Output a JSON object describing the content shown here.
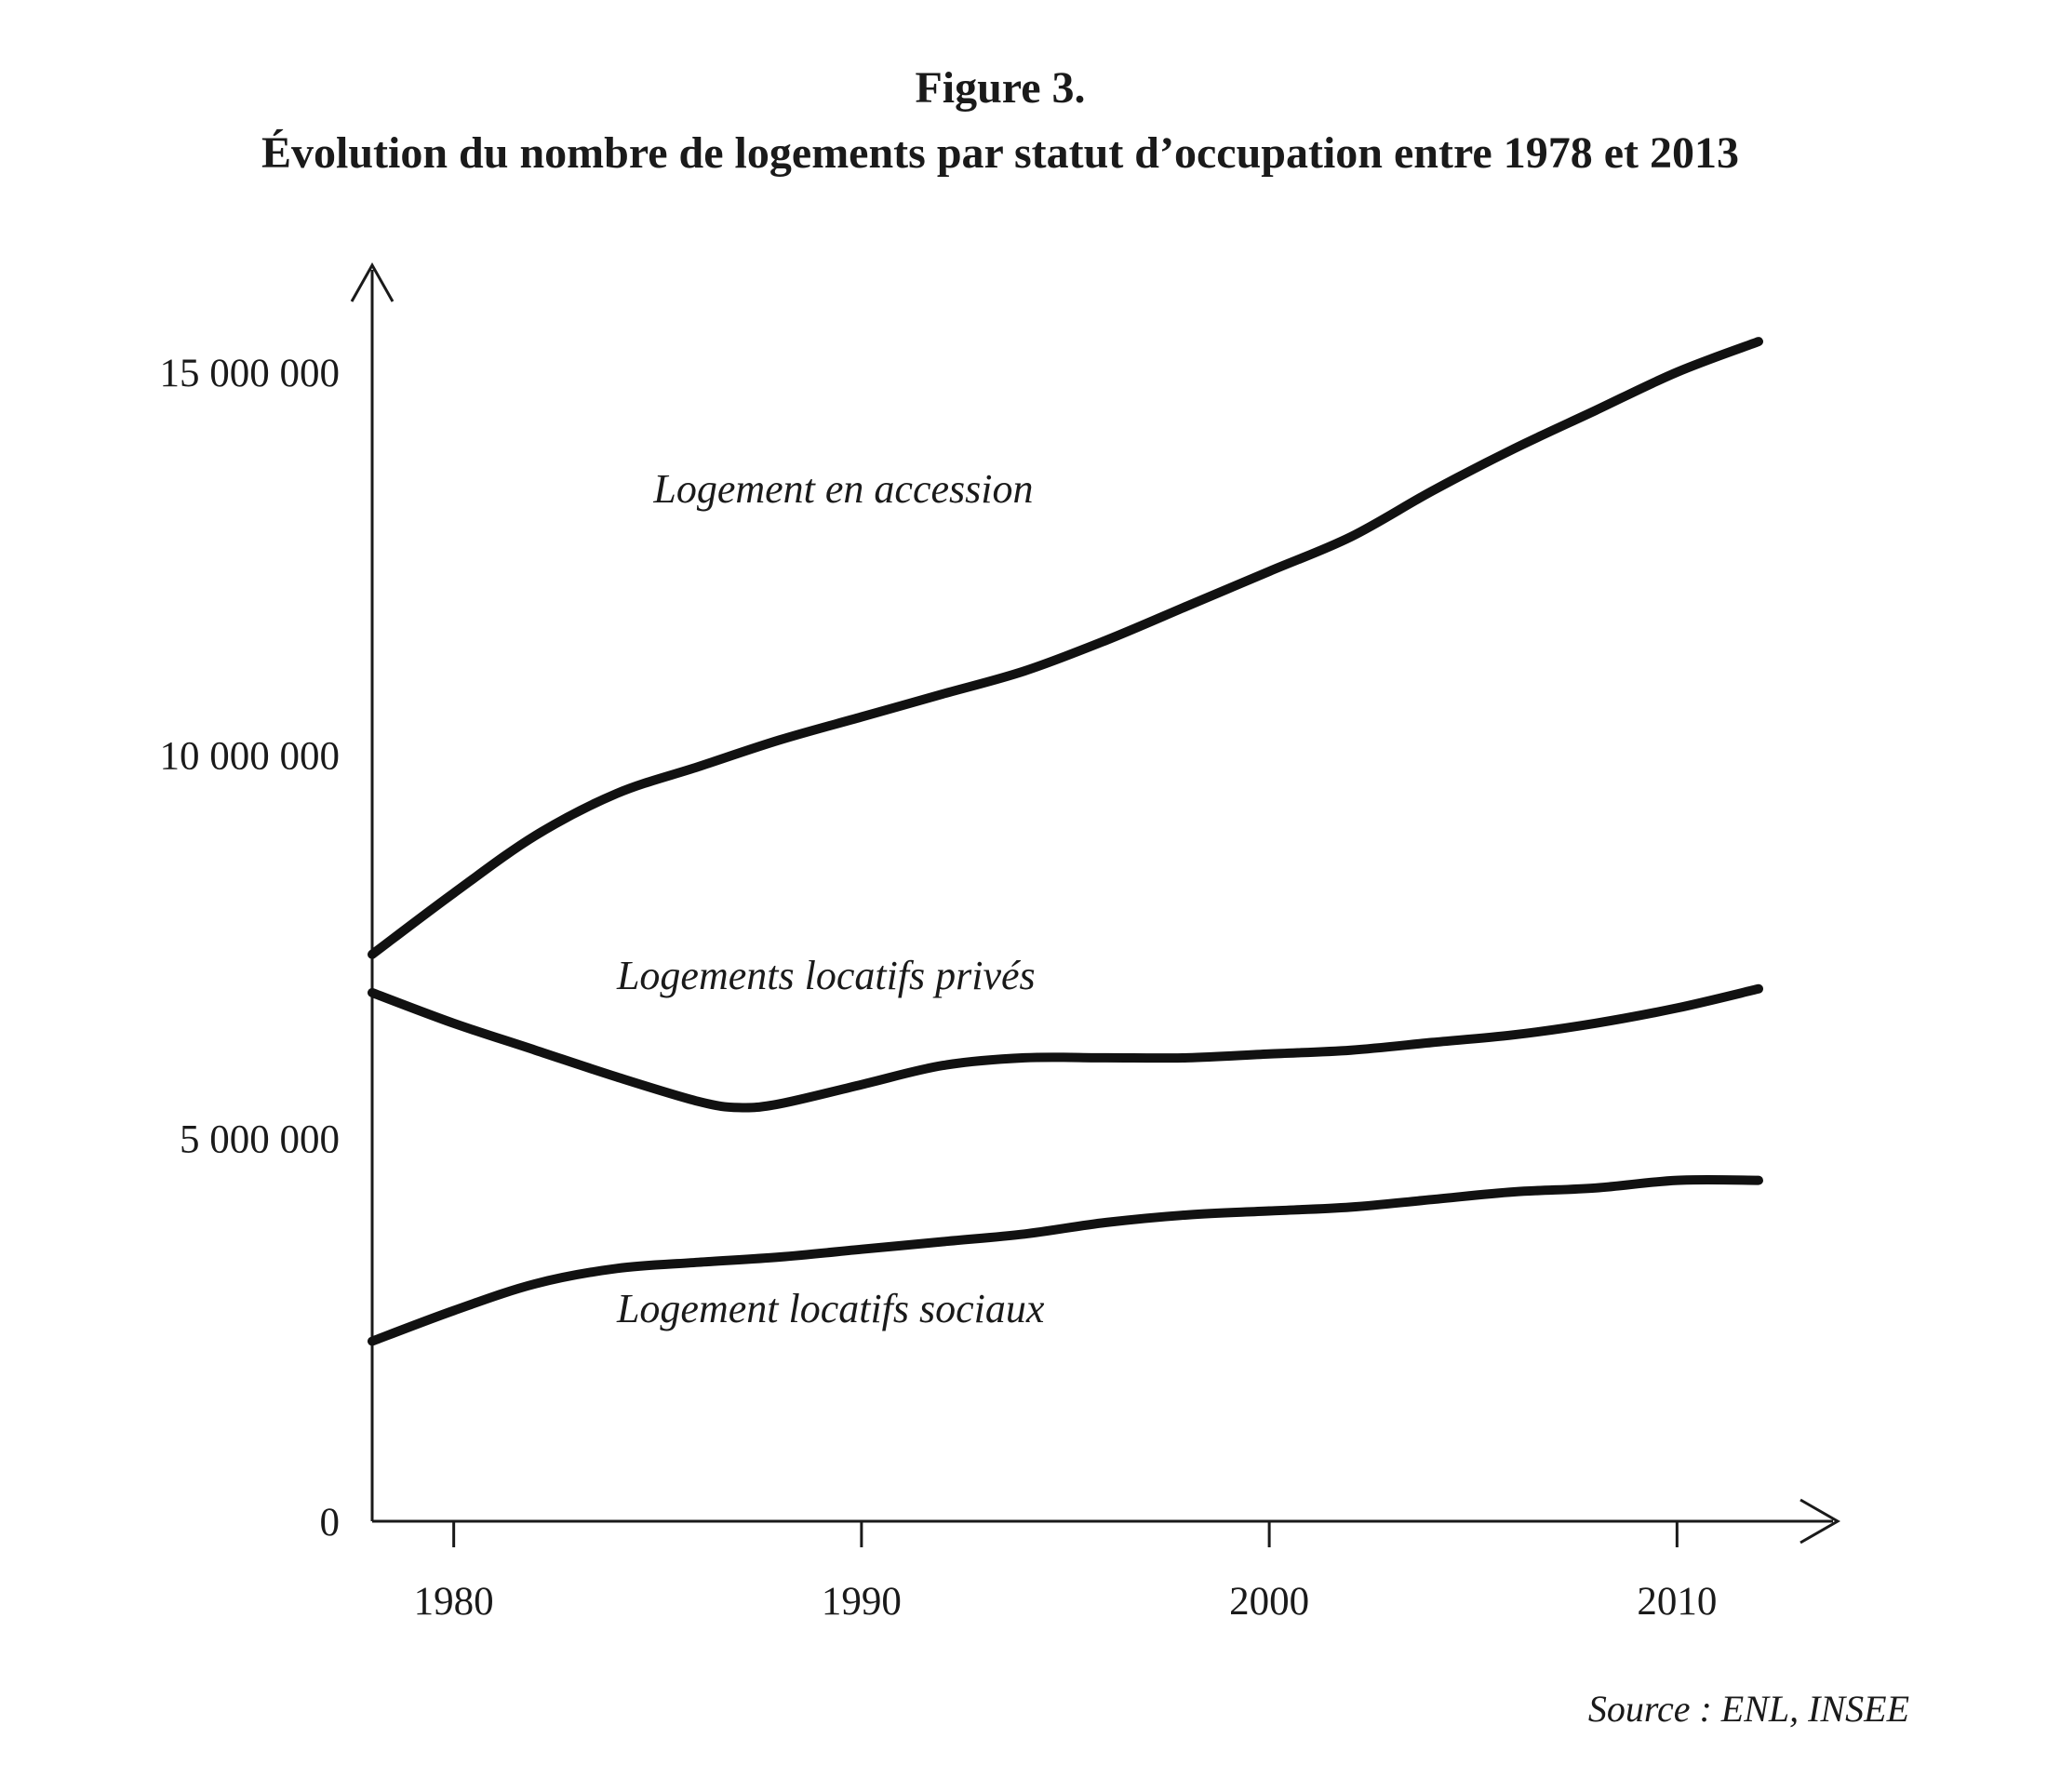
{
  "chart_data": {
    "type": "line",
    "title": "Figure 3.",
    "subtitle": "Évolution du nombre de logements par statut d’occupation entre 1978 et 2013",
    "xlabel": "",
    "ylabel": "",
    "xlim": [
      1978,
      2013
    ],
    "ylim": [
      0,
      15500000
    ],
    "grid": false,
    "x_ticks": [
      1980,
      1990,
      2000,
      2010
    ],
    "x_tick_labels": [
      "1980",
      "1990",
      "2000",
      "2010"
    ],
    "y_ticks": [
      0,
      5000000,
      10000000,
      15000000
    ],
    "y_tick_labels": [
      "0",
      "5 000 000",
      "10 000 000",
      "15 000 000"
    ],
    "series": [
      {
        "name": "Logement en accession",
        "label_year": 1984.9,
        "label_value": 13300000,
        "x": [
          1978,
          1980,
          1982,
          1984,
          1986,
          1988,
          1990,
          1992,
          1994,
          1996,
          1998,
          2000,
          2002,
          2004,
          2006,
          2008,
          2010,
          2012
        ],
        "y": [
          7400000,
          8200000,
          8950000,
          9500000,
          9850000,
          10200000,
          10500000,
          10800000,
          11100000,
          11500000,
          11950000,
          12400000,
          12850000,
          13450000,
          14000000,
          14500000,
          15000000,
          15400000
        ]
      },
      {
        "name": "Logements locatifs privés",
        "label_year": 1984.0,
        "label_value": 6950000,
        "x": [
          1978,
          1980,
          1982,
          1984,
          1986,
          1987,
          1988,
          1990,
          1992,
          1994,
          1996,
          1998,
          2000,
          2002,
          2004,
          2006,
          2008,
          2010,
          2012
        ],
        "y": [
          6900000,
          6500000,
          6150000,
          5800000,
          5480000,
          5400000,
          5450000,
          5700000,
          5950000,
          6050000,
          6050000,
          6050000,
          6100000,
          6150000,
          6250000,
          6350000,
          6500000,
          6700000,
          6950000
        ]
      },
      {
        "name": "Logement locatifs sociaux",
        "label_year": 1984.0,
        "label_value": 2600000,
        "x": [
          1978,
          1980,
          1982,
          1984,
          1986,
          1988,
          1990,
          1992,
          1994,
          1996,
          1998,
          2000,
          2002,
          2004,
          2006,
          2008,
          2010,
          2012
        ],
        "y": [
          2350000,
          2750000,
          3100000,
          3300000,
          3380000,
          3450000,
          3550000,
          3650000,
          3750000,
          3900000,
          4000000,
          4050000,
          4100000,
          4200000,
          4300000,
          4350000,
          4450000,
          4450000
        ]
      }
    ],
    "source": "Source : ENL, INSEE"
  }
}
